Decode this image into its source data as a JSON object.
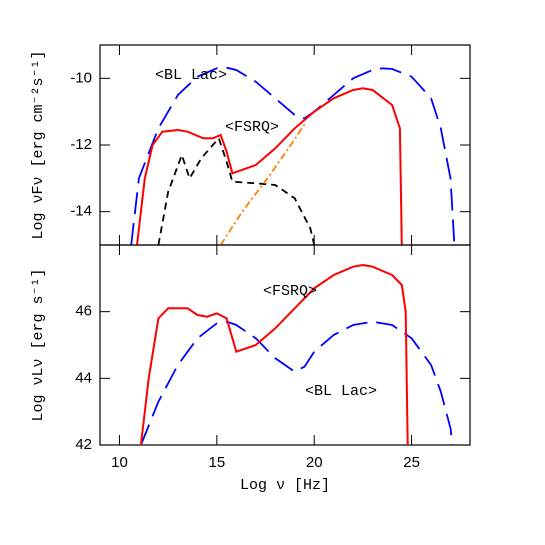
{
  "chart_data": [
    {
      "type": "line",
      "ylabel": "Log νFν [erg cm⁻²s⁻¹]",
      "xlim": [
        9,
        28
      ],
      "ylim": [
        -15,
        -9
      ],
      "yticks": [
        -14,
        -12,
        -10
      ],
      "series": [
        {
          "name": "<BL Lac>",
          "color": "#0000ff",
          "style": "dashed",
          "x": [
            10.6,
            11,
            12,
            13,
            14,
            15,
            15.5,
            16,
            17,
            18,
            19,
            19.5,
            20,
            21,
            22,
            23,
            23.5,
            24,
            25,
            26,
            26.5,
            27,
            27.2
          ],
          "values": [
            -15,
            -13,
            -11.5,
            -10.5,
            -9.95,
            -9.7,
            -9.68,
            -9.75,
            -10.1,
            -10.6,
            -11.1,
            -11.2,
            -11.0,
            -10.5,
            -10.0,
            -9.75,
            -9.7,
            -9.72,
            -9.95,
            -10.6,
            -11.5,
            -13,
            -15
          ]
        },
        {
          "name": "<FSRQ>",
          "color": "#ff0000",
          "style": "solid",
          "x": [
            10.9,
            11.3,
            11.7,
            12.2,
            13,
            13.5,
            14.3,
            14.8,
            15.2,
            15.5,
            15.8,
            17,
            18,
            19,
            20,
            21,
            22,
            22.5,
            23,
            24,
            24.4,
            24.5
          ],
          "values": [
            -15,
            -13,
            -12,
            -11.6,
            -11.55,
            -11.6,
            -11.8,
            -11.8,
            -11.7,
            -12.2,
            -12.85,
            -12.6,
            -12.1,
            -11.5,
            -11.0,
            -10.6,
            -10.35,
            -10.3,
            -10.35,
            -10.8,
            -11.5,
            -15
          ]
        },
        {
          "color": "#000000",
          "style": "shortdash",
          "x": [
            12,
            12.5,
            13.2,
            13.6,
            14.2,
            14.8,
            15.1,
            15.5,
            15.8,
            17,
            18,
            19,
            19.8,
            20
          ],
          "values": [
            -15,
            -13.4,
            -12.3,
            -13,
            -12.4,
            -12,
            -11.8,
            -12.5,
            -13.1,
            -13.15,
            -13.2,
            -13.6,
            -14.5,
            -15
          ]
        },
        {
          "color": "#ff7f00",
          "style": "dashdot",
          "x": [
            15.2,
            16.3,
            17.6,
            18.8,
            19.6
          ],
          "values": [
            -15,
            -14,
            -13,
            -12,
            -11.3
          ]
        }
      ]
    },
    {
      "type": "line",
      "xlabel": "Log ν [Hz]",
      "ylabel": "Log νLν [erg s⁻¹]",
      "xlim": [
        9,
        28
      ],
      "ylim": [
        42,
        48
      ],
      "xticks": [
        10,
        15,
        20,
        25
      ],
      "yticks": [
        42,
        44,
        46
      ],
      "series": [
        {
          "name": "<BL Lac>",
          "color": "#0000ff",
          "style": "dashed",
          "x": [
            11.1,
            12,
            13,
            14,
            15,
            15.5,
            16,
            17,
            18,
            19,
            19.5,
            20,
            21,
            22,
            23,
            24,
            25,
            26,
            26.5,
            27,
            27.1
          ],
          "values": [
            42,
            43.3,
            44.4,
            45.2,
            45.65,
            45.7,
            45.6,
            45.2,
            44.6,
            44.2,
            44.35,
            44.8,
            45.3,
            45.6,
            45.7,
            45.6,
            45.2,
            44.4,
            43.6,
            42.5,
            42
          ]
        },
        {
          "name": "<FSRQ>",
          "color": "#ff0000",
          "style": "solid",
          "x": [
            11.1,
            11.5,
            12,
            12.5,
            13.5,
            14,
            14.5,
            15,
            15.5,
            16,
            17,
            18,
            19,
            20,
            21,
            22,
            22.5,
            23,
            24,
            24.5,
            24.7,
            24.8
          ],
          "values": [
            42,
            44,
            45.8,
            46.1,
            46.1,
            45.9,
            45.85,
            45.95,
            45.8,
            44.8,
            45.0,
            45.5,
            46.1,
            46.7,
            47.1,
            47.35,
            47.4,
            47.35,
            47.1,
            46.8,
            46,
            42
          ]
        }
      ]
    }
  ]
}
